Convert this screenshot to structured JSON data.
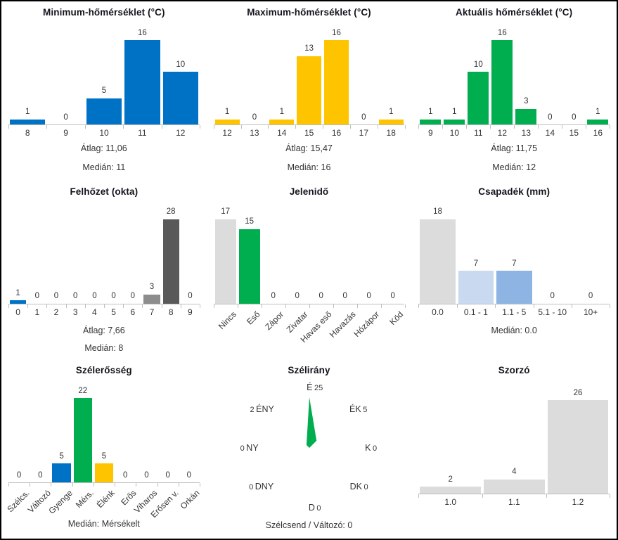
{
  "colors": {
    "blue": "#0072C6",
    "yellow": "#FFC400",
    "green": "#00AE50",
    "light_gray": "#DCDCDC",
    "mid_gray": "#8C8C8C",
    "dark_gray": "#595959",
    "pale_blue": "#C9DAF0",
    "medium_blue": "#8EB4E3",
    "axis": "#BFBFBF",
    "text": "#333333",
    "title": "#14141E"
  },
  "chart_data": [
    {
      "id": "min_temp",
      "type": "bar",
      "title": "Minimum-hőmérséklet (°C)",
      "categories": [
        "8",
        "9",
        "10",
        "11",
        "12"
      ],
      "values": [
        1,
        0,
        5,
        16,
        10
      ],
      "bar_color": "blue",
      "stats": [
        "Átlag: 11,06",
        "Medián: 11"
      ],
      "ylim": [
        0,
        16
      ],
      "grid": false,
      "legend": "none"
    },
    {
      "id": "max_temp",
      "type": "bar",
      "title": "Maximum-hőmérséklet (°C)",
      "categories": [
        "12",
        "13",
        "14",
        "15",
        "16",
        "17",
        "18"
      ],
      "values": [
        1,
        0,
        1,
        13,
        16,
        0,
        1
      ],
      "bar_color": "yellow",
      "stats": [
        "Átlag: 15,47",
        "Medián: 16"
      ],
      "ylim": [
        0,
        16
      ],
      "grid": false,
      "legend": "none"
    },
    {
      "id": "akt_temp",
      "type": "bar",
      "title": "Aktuális hőmérséklet (°C)",
      "categories": [
        "9",
        "10",
        "11",
        "12",
        "13",
        "14",
        "15",
        "16"
      ],
      "values": [
        1,
        1,
        10,
        16,
        3,
        0,
        0,
        1
      ],
      "bar_color": "green",
      "stats": [
        "Átlag: 11,75",
        "Medián: 12"
      ],
      "ylim": [
        0,
        16
      ],
      "grid": false,
      "legend": "none"
    },
    {
      "id": "felhozet",
      "type": "bar",
      "title": "Felhőzet (okta)",
      "categories": [
        "0",
        "1",
        "2",
        "3",
        "4",
        "5",
        "6",
        "7",
        "8",
        "9"
      ],
      "values": [
        1,
        0,
        0,
        0,
        0,
        0,
        0,
        3,
        28,
        0
      ],
      "bar_colors": [
        "blue",
        "light_gray",
        "light_gray",
        "light_gray",
        "light_gray",
        "light_gray",
        "light_gray",
        "mid_gray",
        "dark_gray",
        "light_gray"
      ],
      "stats": [
        "Átlag: 7,66",
        "Medián: 8"
      ],
      "ylim": [
        0,
        28
      ],
      "grid": false,
      "legend": "none"
    },
    {
      "id": "jelenido",
      "type": "bar",
      "title": "Jelenidő",
      "categories": [
        "Nincs",
        "Eső",
        "Zápor",
        "Zivatar",
        "Havas eső",
        "Havazás",
        "Hózápor",
        "Köd"
      ],
      "values": [
        17,
        15,
        0,
        0,
        0,
        0,
        0,
        0
      ],
      "bar_colors": [
        "light_gray",
        "green",
        "light_gray",
        "light_gray",
        "light_gray",
        "light_gray",
        "light_gray",
        "light_gray"
      ],
      "stats": [],
      "ylim": [
        0,
        17
      ],
      "rotated_labels": true,
      "grid": false,
      "legend": "none"
    },
    {
      "id": "csapadek",
      "type": "bar",
      "title": "Csapadék (mm)",
      "categories": [
        "0.0",
        "0.1 - 1",
        "1.1 - 5",
        "5.1 - 10",
        "10+"
      ],
      "values": [
        18,
        7,
        7,
        0,
        0
      ],
      "bar_colors": [
        "light_gray",
        "pale_blue",
        "medium_blue",
        "light_gray",
        "light_gray"
      ],
      "stats": [
        "Medián: 0.0"
      ],
      "ylim": [
        0,
        18
      ],
      "grid": false,
      "legend": "none"
    },
    {
      "id": "szelerosseg",
      "type": "bar",
      "title": "Szélerősség",
      "categories": [
        "Szélcs.",
        "Változó",
        "Gyenge",
        "Mérs.",
        "Élénk",
        "Erős",
        "Viharos",
        "Erősen v.",
        "Orkán"
      ],
      "values": [
        0,
        0,
        5,
        22,
        5,
        0,
        0,
        0,
        0
      ],
      "bar_colors": [
        "light_gray",
        "light_gray",
        "blue",
        "green",
        "yellow",
        "light_gray",
        "light_gray",
        "light_gray",
        "light_gray"
      ],
      "stats": [
        "Medián: Mérsékelt"
      ],
      "ylim": [
        0,
        22
      ],
      "rotated_labels": true,
      "grid": false,
      "legend": "none"
    },
    {
      "id": "szelirany",
      "type": "radar",
      "title": "Szélirány",
      "directions": [
        {
          "label": "É",
          "value": 25
        },
        {
          "label": "ÉK",
          "value": 5
        },
        {
          "label": "K",
          "value": 0
        },
        {
          "label": "DK",
          "value": 0
        },
        {
          "label": "D",
          "value": 0
        },
        {
          "label": "DNY",
          "value": 0
        },
        {
          "label": "NY",
          "value": 0
        },
        {
          "label": "ÉNY",
          "value": 2
        }
      ],
      "max_value": 25,
      "shape_color": "green",
      "footer": "Szélcsend / Változó: 0",
      "grid": false,
      "legend": "none"
    },
    {
      "id": "szorzo",
      "type": "bar",
      "title": "Szorzó",
      "categories": [
        "1.0",
        "1.1",
        "1.2"
      ],
      "values": [
        2,
        4,
        26
      ],
      "bar_color": "light_gray",
      "stats": [],
      "ylim": [
        0,
        26
      ],
      "grid": false,
      "legend": "none"
    }
  ]
}
